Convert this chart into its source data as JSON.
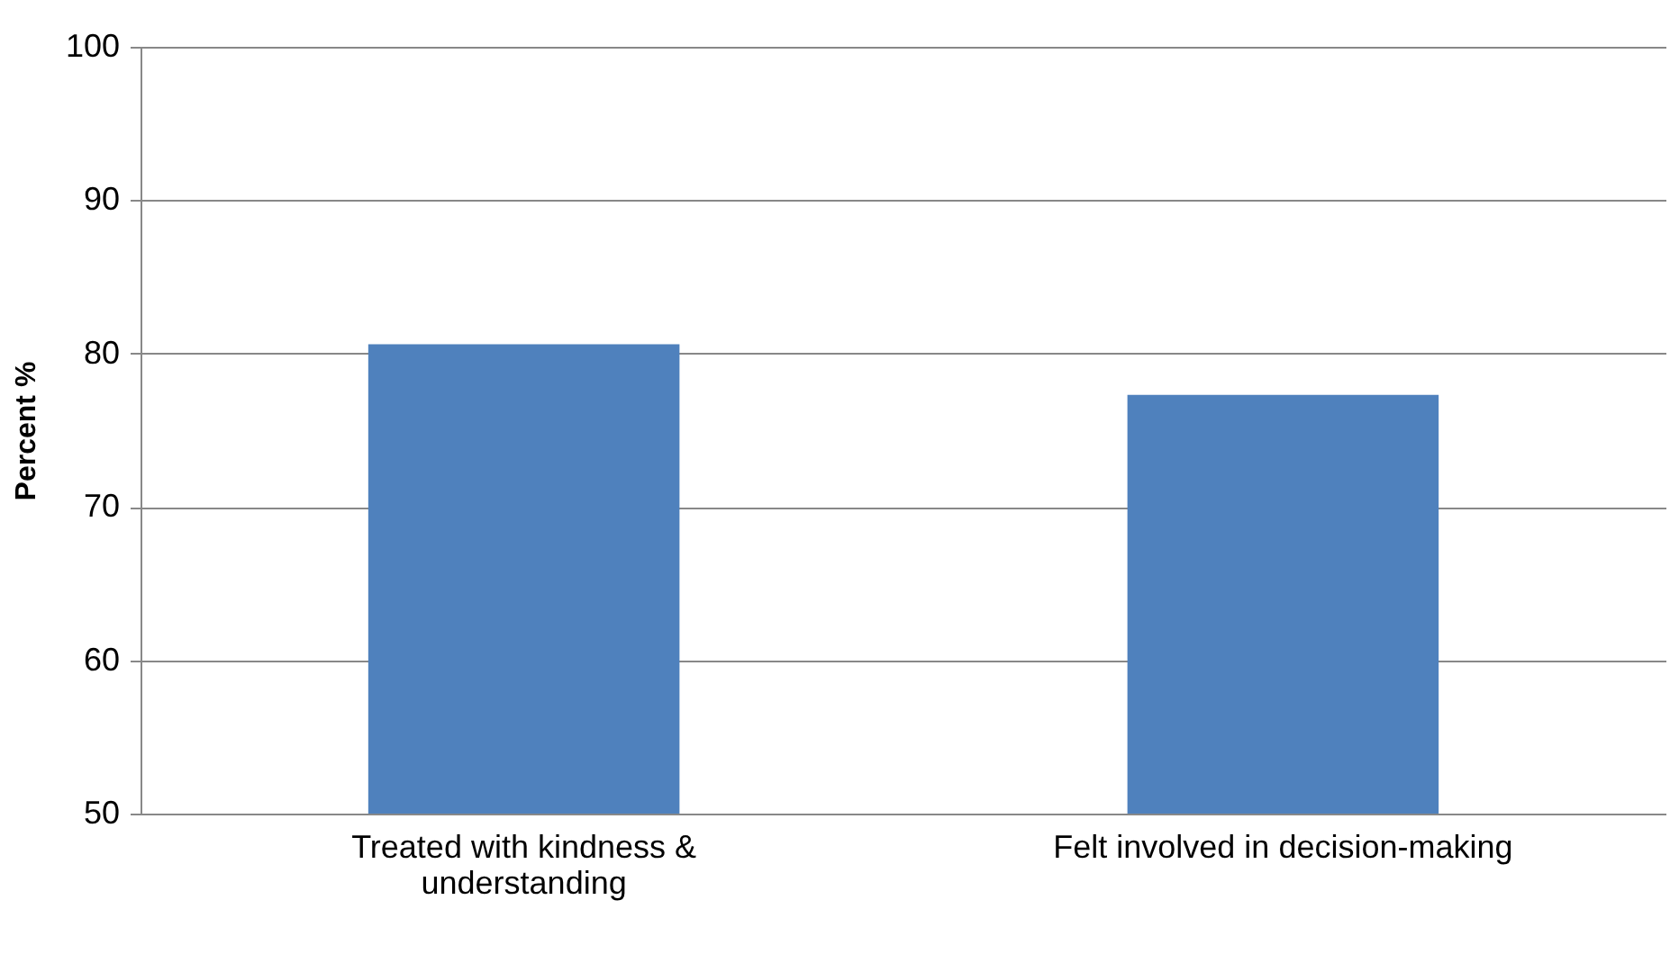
{
  "chart_data": {
    "type": "bar",
    "ylabel": "Percent %",
    "categories": [
      "Treated with kindness & understanding",
      "Felt involved in decision-making"
    ],
    "values": [
      80.6,
      77.3
    ],
    "color": "#4f81bd",
    "ylim": [
      50,
      100
    ],
    "yticks": [
      50,
      60,
      70,
      80,
      90,
      100
    ],
    "grid": "y"
  }
}
